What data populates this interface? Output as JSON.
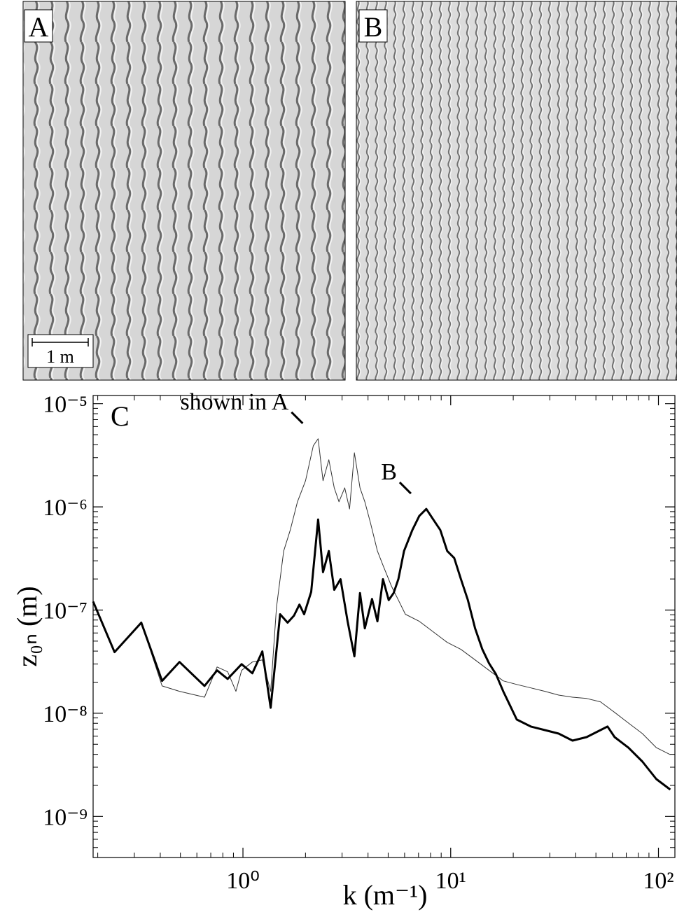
{
  "panels": [
    {
      "label": "A",
      "scale_bar": "1 m"
    },
    {
      "label": "B"
    }
  ],
  "chart_data": {
    "type": "line",
    "panel_label": "C",
    "xscale": "log",
    "yscale": "log",
    "minor_ticks": true,
    "xlabel": "k (m⁻¹)",
    "ylabel": "z₀ₙ (m)",
    "xlim": [
      0.19,
      120
    ],
    "ylim": [
      4e-10,
      1.2e-05
    ],
    "xticks": [
      {
        "value": 1,
        "label": "10⁰"
      },
      {
        "value": 10,
        "label": "10¹"
      },
      {
        "value": 100,
        "label": "10²"
      }
    ],
    "yticks": [
      {
        "value": 1e-05,
        "label": "10⁻⁵"
      },
      {
        "value": 1e-06,
        "label": "10⁻⁶"
      },
      {
        "value": 1e-07,
        "label": "10⁻⁷"
      },
      {
        "value": 1e-08,
        "label": "10⁻⁸"
      },
      {
        "value": 1e-09,
        "label": "10⁻⁹"
      }
    ],
    "annotations": [
      {
        "text": "shown in A",
        "series": 0
      },
      {
        "text": "B",
        "series": 1
      }
    ],
    "series": [
      {
        "color": "#333333",
        "width": 1,
        "x": [
          0.19,
          0.241,
          0.324,
          0.408,
          0.495,
          0.653,
          0.751,
          0.844,
          0.925,
          0.985,
          1.11,
          1.24,
          1.36,
          1.45,
          1.57,
          1.69,
          1.83,
          2.0,
          2.18,
          2.3,
          2.43,
          2.59,
          2.75,
          2.9,
          3.09,
          3.26,
          3.44,
          3.66,
          3.86,
          4.11,
          4.44,
          4.72,
          5.19,
          5.6,
          6.05,
          7.06,
          8.24,
          9.62,
          11.2,
          13.1,
          15.3,
          17.9,
          20.8,
          24.3,
          28.4,
          33.1,
          38.6,
          45.1,
          52.6,
          61.5,
          71.7,
          83.7,
          97.7,
          114
        ],
        "values": [
          1.21e-07,
          3.91e-08,
          7.55e-08,
          1.84e-08,
          1.63e-08,
          1.43e-08,
          2.81e-08,
          2.52e-08,
          1.63e-08,
          2.6e-08,
          3.14e-08,
          3.29e-08,
          1.63e-08,
          1.06e-07,
          3.73e-07,
          5.96e-07,
          1.12e-06,
          1.79e-06,
          3.91e-06,
          4.57e-06,
          1.79e-06,
          2.86e-06,
          1.53e-06,
          1.12e-06,
          1.53e-06,
          9.54e-07,
          3.34e-06,
          1.53e-06,
          1.12e-06,
          6.98e-07,
          3.73e-07,
          2.72e-07,
          1.7e-07,
          1.25e-07,
          9.1e-08,
          7.78e-08,
          6.15e-08,
          4.86e-08,
          4.16e-08,
          3.29e-08,
          2.6e-08,
          2.06e-08,
          1.9e-08,
          1.76e-08,
          1.63e-08,
          1.5e-08,
          1.43e-08,
          1.39e-08,
          1.29e-08,
          1.02e-08,
          8.04e-09,
          6.35e-09,
          4.64e-09,
          3.97e-09
        ]
      },
      {
        "color": "#000000",
        "width": 3,
        "x": [
          0.19,
          0.241,
          0.324,
          0.408,
          0.495,
          0.653,
          0.751,
          0.844,
          0.985,
          1.11,
          1.24,
          1.36,
          1.51,
          1.64,
          1.76,
          1.87,
          1.97,
          2.13,
          2.3,
          2.43,
          2.59,
          2.75,
          2.95,
          3.19,
          3.44,
          3.66,
          3.86,
          4.18,
          4.44,
          4.72,
          5.03,
          5.31,
          5.6,
          5.96,
          6.54,
          7.06,
          7.63,
          8.24,
          8.91,
          9.62,
          10.4,
          11.2,
          12.1,
          13.1,
          14.2,
          15.3,
          16.5,
          17.9,
          19.3,
          20.8,
          24.3,
          28.4,
          33.1,
          38.6,
          45.1,
          52.6,
          56.9,
          61.5,
          71.7,
          83.7,
          97.7,
          114
        ],
        "values": [
          1.21e-07,
          3.91e-08,
          7.55e-08,
          2.06e-08,
          3.14e-08,
          1.84e-08,
          2.6e-08,
          2.15e-08,
          2.99e-08,
          2.44e-08,
          3.97e-08,
          1.13e-08,
          9.1e-08,
          7.55e-08,
          8.83e-08,
          1.13e-07,
          9.1e-08,
          1.5e-07,
          7.55e-07,
          2.33e-07,
          3.73e-07,
          1.57e-07,
          1.99e-07,
          7.78e-08,
          3.56e-08,
          1.46e-07,
          6.65e-08,
          1.28e-07,
          7.78e-08,
          1.99e-07,
          1.25e-07,
          1.46e-07,
          1.99e-07,
          3.73e-07,
          5.96e-07,
          8.16e-07,
          9.54e-07,
          7.55e-07,
          5.96e-07,
          3.73e-07,
          3.19e-07,
          1.99e-07,
          1.25e-07,
          6.65e-08,
          4.16e-08,
          3.04e-08,
          2.4e-08,
          1.63e-08,
          1.19e-08,
          8.69e-09,
          7.43e-09,
          6.87e-09,
          6.35e-09,
          5.43e-09,
          5.87e-09,
          6.87e-09,
          7.43e-09,
          5.87e-09,
          4.64e-09,
          3.4e-09,
          2.3e-09,
          1.82e-09
        ]
      }
    ]
  }
}
